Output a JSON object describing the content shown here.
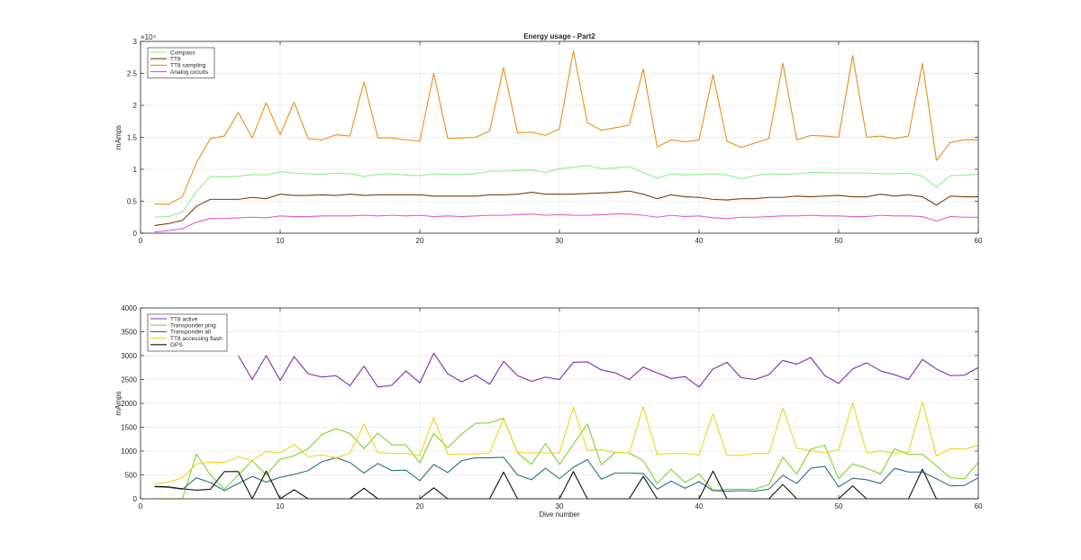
{
  "chart_data": [
    {
      "type": "line",
      "title": "Energy usage - Part2",
      "xlabel": "",
      "ylabel": "mAmps",
      "y_exponent_label": "×10⁴",
      "xlim": [
        0,
        60
      ],
      "ylim": [
        0,
        30000
      ],
      "xticks": [
        0,
        10,
        20,
        30,
        40,
        50,
        60
      ],
      "yticks": [
        0,
        5000,
        10000,
        15000,
        20000,
        25000,
        30000
      ],
      "ytick_labels": [
        "0",
        "0.5",
        "1",
        "1.5",
        "2",
        "2.5",
        "3"
      ],
      "grid": true,
      "legend_position": "top-left",
      "x": [
        1,
        2,
        3,
        4,
        5,
        6,
        7,
        8,
        9,
        10,
        11,
        12,
        13,
        14,
        15,
        16,
        17,
        18,
        19,
        20,
        21,
        22,
        23,
        24,
        25,
        26,
        27,
        28,
        29,
        30,
        31,
        32,
        33,
        34,
        35,
        36,
        37,
        38,
        39,
        40,
        41,
        42,
        43,
        44,
        45,
        46,
        47,
        48,
        49,
        50,
        51,
        52,
        53,
        54,
        55,
        56,
        57,
        58,
        59,
        60
      ],
      "series": [
        {
          "name": "Compass",
          "color": "#90ee90",
          "values": [
            2500,
            2600,
            3300,
            6500,
            8900,
            8800,
            8900,
            9200,
            9100,
            9600,
            9400,
            9300,
            9200,
            9400,
            9300,
            8900,
            9200,
            9300,
            9100,
            9000,
            9300,
            9200,
            9200,
            9300,
            9700,
            9700,
            9800,
            9900,
            9500,
            10100,
            10300,
            10600,
            10100,
            10200,
            10400,
            9500,
            8600,
            9300,
            9100,
            9200,
            9300,
            9100,
            8500,
            9000,
            9300,
            9200,
            9300,
            9500,
            9500,
            9400,
            9400,
            9400,
            9300,
            9300,
            9400,
            8900,
            7200,
            9000,
            9100,
            9200
          ]
        },
        {
          "name": "TT8",
          "color": "#7b3f10",
          "values": [
            1200,
            1500,
            2000,
            4200,
            5300,
            5300,
            5300,
            5600,
            5400,
            6100,
            5900,
            5900,
            6000,
            5900,
            6100,
            5900,
            6000,
            6000,
            6000,
            6000,
            5800,
            5800,
            5800,
            5800,
            6000,
            6000,
            6100,
            6400,
            6100,
            6100,
            6100,
            6200,
            6300,
            6400,
            6600,
            6100,
            5400,
            6000,
            5700,
            5600,
            5300,
            5200,
            5400,
            5400,
            5600,
            5600,
            5800,
            5700,
            5800,
            5900,
            5700,
            5700,
            6100,
            5800,
            6000,
            5700,
            4400,
            5800,
            5700,
            5700
          ]
        },
        {
          "name": "TT8 sampling",
          "color": "#e8901a",
          "values": [
            4600,
            4500,
            5700,
            11000,
            14800,
            15200,
            18900,
            14900,
            20400,
            15400,
            20500,
            14800,
            14600,
            15400,
            15200,
            23700,
            14900,
            14900,
            14600,
            14400,
            25000,
            14800,
            14900,
            15000,
            16000,
            25900,
            15700,
            15800,
            15300,
            16300,
            28500,
            17300,
            16100,
            16500,
            16900,
            25700,
            13500,
            14600,
            14300,
            14600,
            24800,
            14400,
            13400,
            14100,
            14800,
            26600,
            14600,
            15300,
            15200,
            15000,
            27800,
            15000,
            15200,
            14800,
            15200,
            26600,
            11400,
            14200,
            14600,
            14600
          ]
        },
        {
          "name": "Analog circuits",
          "color": "#e05ccf",
          "values": [
            200,
            400,
            700,
            1700,
            2300,
            2300,
            2400,
            2500,
            2400,
            2700,
            2600,
            2600,
            2700,
            2700,
            2700,
            2800,
            2700,
            2800,
            2700,
            2800,
            2600,
            2700,
            2600,
            2700,
            2800,
            2800,
            2900,
            3000,
            2800,
            2900,
            2800,
            2800,
            2900,
            3000,
            3000,
            2800,
            2500,
            2800,
            2600,
            2700,
            2400,
            2300,
            2500,
            2500,
            2600,
            2700,
            2700,
            2800,
            2700,
            2700,
            2600,
            2600,
            2800,
            2700,
            2700,
            2600,
            1900,
            2600,
            2500,
            2500
          ]
        }
      ]
    },
    {
      "type": "line",
      "title": "",
      "xlabel": "Dive number",
      "ylabel": "mAmps",
      "xlim": [
        0,
        60
      ],
      "ylim": [
        0,
        4000
      ],
      "xticks": [
        0,
        10,
        20,
        30,
        40,
        50,
        60
      ],
      "yticks": [
        0,
        500,
        1000,
        1500,
        2000,
        2500,
        3000,
        3500,
        4000
      ],
      "ytick_labels": [
        "0",
        "500",
        "1000",
        "1500",
        "2000",
        "2500",
        "3000",
        "3500",
        "4000"
      ],
      "grid": true,
      "legend_position": "top-left",
      "x": [
        1,
        2,
        3,
        4,
        5,
        6,
        7,
        8,
        9,
        10,
        11,
        12,
        13,
        14,
        15,
        16,
        17,
        18,
        19,
        20,
        21,
        22,
        23,
        24,
        25,
        26,
        27,
        28,
        29,
        30,
        31,
        32,
        33,
        34,
        35,
        36,
        37,
        38,
        39,
        40,
        41,
        42,
        43,
        44,
        45,
        46,
        47,
        48,
        49,
        50,
        51,
        52,
        53,
        54,
        55,
        56,
        57,
        58,
        59,
        60
      ],
      "series": [
        {
          "name": "TT8 active",
          "color": "#7a2fa8",
          "values": [
            null,
            null,
            null,
            null,
            null,
            null,
            3000,
            2500,
            3000,
            2480,
            2980,
            2620,
            2550,
            2580,
            2370,
            2780,
            2340,
            2380,
            2680,
            2430,
            3050,
            2620,
            2450,
            2590,
            2400,
            2880,
            2580,
            2460,
            2550,
            2500,
            2860,
            2870,
            2700,
            2640,
            2500,
            2760,
            2640,
            2520,
            2560,
            2340,
            2720,
            2860,
            2540,
            2500,
            2600,
            2900,
            2820,
            2960,
            2580,
            2420,
            2720,
            2850,
            2680,
            2600,
            2500,
            2920,
            2720,
            2580,
            2590,
            2750
          ]
        },
        {
          "name": "Transponder ping",
          "color": "#7ed32a",
          "values": [
            0,
            0,
            0,
            940,
            500,
            200,
            500,
            800,
            500,
            830,
            900,
            1050,
            1350,
            1470,
            1370,
            1050,
            1380,
            1130,
            1130,
            750,
            1370,
            1070,
            1360,
            1580,
            1590,
            1690,
            960,
            720,
            1160,
            720,
            1140,
            1570,
            710,
            970,
            960,
            800,
            320,
            620,
            340,
            520,
            180,
            200,
            200,
            200,
            300,
            870,
            520,
            1040,
            1120,
            420,
            730,
            640,
            520,
            1050,
            930,
            930,
            690,
            440,
            420,
            760
          ]
        },
        {
          "name": "Transponder all",
          "color": "#2b7080",
          "values": [
            250,
            240,
            200,
            440,
            340,
            170,
            320,
            470,
            350,
            450,
            510,
            590,
            780,
            860,
            760,
            540,
            740,
            590,
            600,
            380,
            720,
            550,
            800,
            860,
            860,
            870,
            500,
            400,
            640,
            420,
            660,
            820,
            410,
            540,
            540,
            530,
            200,
            370,
            220,
            360,
            170,
            160,
            170,
            160,
            200,
            490,
            320,
            640,
            680,
            250,
            430,
            400,
            320,
            640,
            560,
            560,
            420,
            270,
            280,
            440
          ]
        },
        {
          "name": "TT8 accessing flash",
          "color": "#f0d41e",
          "values": [
            310,
            350,
            440,
            730,
            770,
            760,
            880,
            800,
            990,
            960,
            1140,
            880,
            920,
            860,
            960,
            1560,
            970,
            950,
            950,
            910,
            1700,
            930,
            940,
            940,
            960,
            1680,
            970,
            960,
            960,
            960,
            1920,
            1020,
            1030,
            970,
            960,
            1930,
            930,
            950,
            950,
            920,
            1780,
            910,
            910,
            950,
            950,
            1900,
            1060,
            1010,
            960,
            1020,
            2010,
            960,
            1000,
            950,
            980,
            2030,
            900,
            1050,
            1040,
            1120
          ]
        },
        {
          "name": "GPS",
          "color": "#111111",
          "values": [
            260,
            250,
            210,
            180,
            200,
            570,
            570,
            0,
            580,
            0,
            190,
            0,
            0,
            0,
            0,
            220,
            0,
            0,
            0,
            0,
            230,
            0,
            0,
            0,
            0,
            560,
            0,
            0,
            0,
            0,
            570,
            0,
            0,
            0,
            0,
            470,
            0,
            0,
            0,
            0,
            580,
            0,
            0,
            0,
            0,
            300,
            0,
            0,
            0,
            0,
            270,
            0,
            0,
            0,
            0,
            620,
            0,
            0,
            0,
            0
          ]
        }
      ]
    }
  ]
}
